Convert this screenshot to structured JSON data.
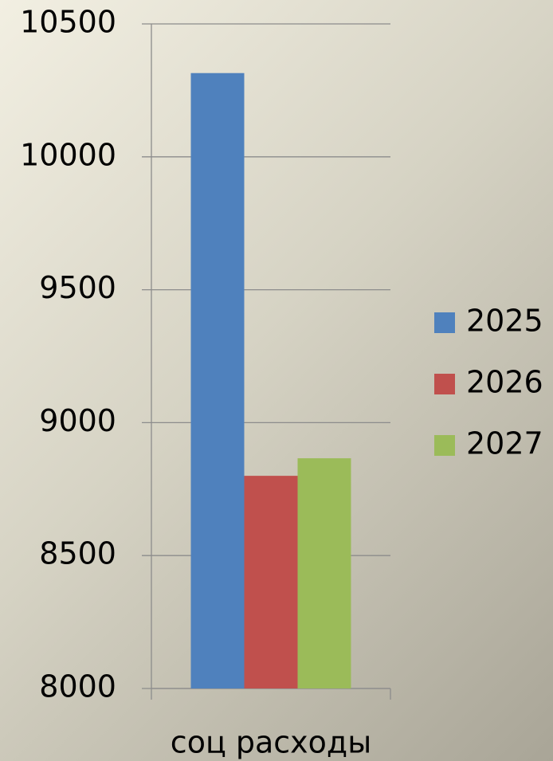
{
  "chart_data": {
    "type": "bar",
    "categories": [
      "соц расходы"
    ],
    "series": [
      {
        "name": "2025",
        "color": "#4f81bd",
        "values": [
          10315
        ]
      },
      {
        "name": "2026",
        "color": "#c0504d",
        "values": [
          8800
        ]
      },
      {
        "name": "2027",
        "color": "#9bbb59",
        "values": [
          8866
        ]
      }
    ],
    "ylim": [
      8000,
      10500
    ],
    "yticks": [
      8000,
      8500,
      9000,
      9500,
      10000,
      10500
    ],
    "grid": true,
    "legend": "right"
  }
}
